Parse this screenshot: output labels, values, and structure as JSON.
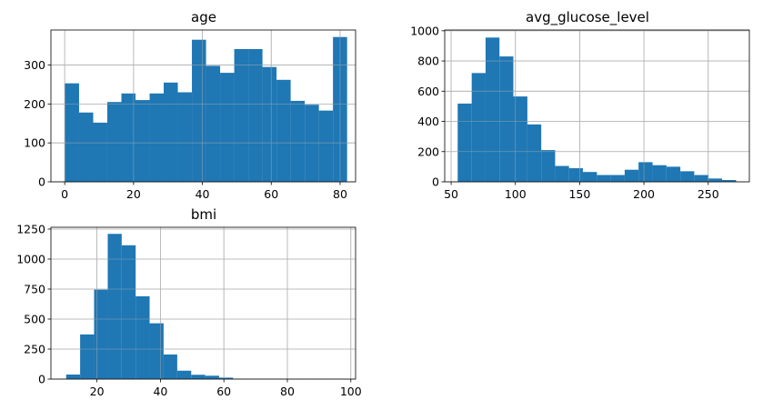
{
  "chart_data": [
    {
      "type": "bar",
      "title": "age",
      "xlim": [
        -4,
        84.5
      ],
      "ylim": [
        0,
        390
      ],
      "grid": true,
      "color": "#1f77b4",
      "xticks": [
        0,
        20,
        40,
        60,
        80
      ],
      "yticks": [
        0,
        100,
        200,
        300
      ],
      "bin_edges": [
        0.08,
        4.18,
        8.28,
        12.37,
        16.47,
        20.57,
        24.67,
        28.76,
        32.86,
        36.96,
        41.06,
        45.15,
        49.25,
        53.35,
        57.45,
        61.54,
        65.64,
        69.74,
        73.84,
        77.93,
        82.03
      ],
      "values": [
        253,
        178,
        152,
        205,
        227,
        210,
        227,
        255,
        230,
        365,
        298,
        280,
        341,
        341,
        295,
        262,
        208,
        198,
        183,
        372
      ]
    },
    {
      "type": "bar",
      "title": "avg_glucose_level",
      "xlim": [
        45,
        282
      ],
      "ylim": [
        0,
        1005
      ],
      "grid": true,
      "color": "#1f77b4",
      "xticks": [
        50,
        100,
        150,
        200,
        250
      ],
      "yticks": [
        0,
        200,
        400,
        600,
        800,
        1000
      ],
      "bin_edges": [
        55.1,
        66.0,
        76.8,
        87.6,
        98.4,
        109.3,
        120.1,
        130.9,
        141.7,
        152.5,
        163.4,
        174.2,
        185.0,
        195.8,
        206.7,
        217.5,
        228.3,
        239.1,
        250.0,
        260.8,
        271.7
      ],
      "values": [
        518,
        720,
        955,
        830,
        565,
        380,
        210,
        105,
        90,
        65,
        45,
        45,
        80,
        130,
        110,
        100,
        70,
        45,
        22,
        12
      ]
    },
    {
      "type": "bar",
      "title": "bmi",
      "xlim": [
        5.5,
        101.5
      ],
      "ylim": [
        0,
        1265
      ],
      "grid": true,
      "color": "#1f77b4",
      "xticks": [
        20,
        40,
        60,
        80,
        100
      ],
      "yticks": [
        0,
        250,
        500,
        750,
        1000,
        1250
      ],
      "bin_edges": [
        10.3,
        14.7,
        19.1,
        23.4,
        27.8,
        32.2,
        36.6,
        41.0,
        45.3,
        49.7,
        54.1,
        58.5,
        62.9,
        67.2,
        71.6,
        76.0,
        80.4,
        84.8,
        89.1,
        93.5,
        97.9
      ],
      "values": [
        38,
        372,
        745,
        1210,
        1115,
        690,
        465,
        205,
        70,
        36,
        28,
        12,
        3,
        2,
        1,
        1,
        0,
        1,
        0,
        1
      ]
    }
  ]
}
